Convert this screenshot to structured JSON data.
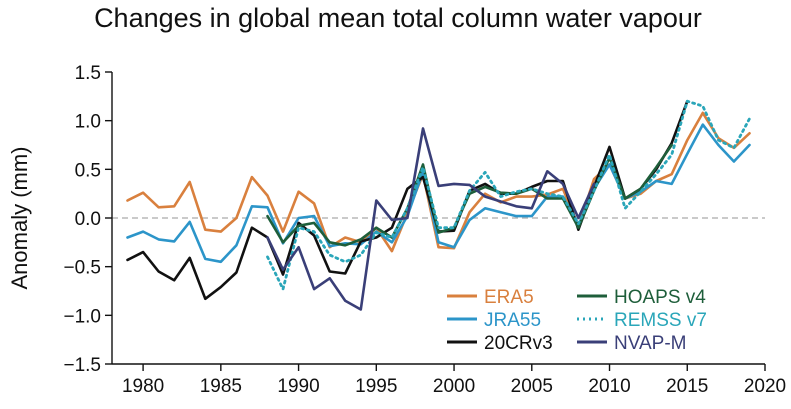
{
  "chart_data": {
    "type": "line",
    "title": "Changes in global mean total column water vapour",
    "xlabel": "",
    "ylabel": "Anomaly (mm)",
    "xlim": [
      1978,
      2020
    ],
    "ylim": [
      -1.5,
      1.5
    ],
    "xticks": [
      1980,
      1985,
      1990,
      1995,
      2000,
      2005,
      2010,
      2015,
      2020
    ],
    "yticks": [
      {
        "value": -1.5,
        "label": "−1.5"
      },
      {
        "value": -1.0,
        "label": "−1.0"
      },
      {
        "value": -0.5,
        "label": "−0.5"
      },
      {
        "value": 0.0,
        "label": "0.0"
      },
      {
        "value": 0.5,
        "label": "0.5"
      },
      {
        "value": 1.0,
        "label": "1.0"
      },
      {
        "value": 1.5,
        "label": "1.5"
      }
    ],
    "zero_line": "dashed",
    "legend_placement": "bottom-right",
    "series": [
      {
        "name": "ERA5",
        "color": "#d9803e",
        "dash": "solid",
        "x": [
          1979,
          1980,
          1981,
          1982,
          1983,
          1984,
          1985,
          1986,
          1987,
          1988,
          1989,
          1990,
          1991,
          1992,
          1993,
          1994,
          1995,
          1996,
          1997,
          1998,
          1999,
          2000,
          2001,
          2002,
          2003,
          2004,
          2005,
          2006,
          2007,
          2008,
          2009,
          2010,
          2011,
          2012,
          2013,
          2014,
          2015,
          2016,
          2017,
          2018,
          2019
        ],
        "y": [
          0.18,
          0.26,
          0.11,
          0.12,
          0.37,
          -0.12,
          -0.14,
          0.0,
          0.42,
          0.23,
          -0.14,
          0.27,
          0.15,
          -0.3,
          -0.2,
          -0.25,
          -0.1,
          -0.34,
          0.05,
          0.45,
          -0.3,
          -0.31,
          0.06,
          0.25,
          0.16,
          0.22,
          0.22,
          0.24,
          0.3,
          -0.09,
          0.4,
          0.55,
          0.2,
          0.25,
          0.38,
          0.45,
          0.8,
          1.08,
          0.82,
          0.72,
          0.87
        ]
      },
      {
        "name": "JRA55",
        "color": "#2c95c9",
        "dash": "solid",
        "x": [
          1979,
          1980,
          1981,
          1982,
          1983,
          1984,
          1985,
          1986,
          1987,
          1988,
          1989,
          1990,
          1991,
          1992,
          1993,
          1994,
          1995,
          1996,
          1997,
          1998,
          1999,
          2000,
          2001,
          2002,
          2003,
          2004,
          2005,
          2006,
          2007,
          2008,
          2009,
          2010,
          2011,
          2012,
          2013,
          2014,
          2015,
          2016,
          2017,
          2018,
          2019
        ],
        "y": [
          -0.2,
          -0.14,
          -0.22,
          -0.24,
          -0.04,
          -0.42,
          -0.45,
          -0.28,
          0.12,
          0.11,
          -0.26,
          0.0,
          0.02,
          -0.29,
          -0.26,
          -0.27,
          -0.14,
          -0.25,
          0.02,
          0.48,
          -0.25,
          -0.3,
          -0.02,
          0.1,
          0.06,
          0.02,
          0.02,
          0.22,
          0.22,
          -0.08,
          0.3,
          0.55,
          0.2,
          0.27,
          0.38,
          0.35,
          0.66,
          0.96,
          0.75,
          0.58,
          0.75
        ]
      },
      {
        "name": "20CRv3",
        "color": "#111111",
        "dash": "solid",
        "x": [
          1979,
          1980,
          1981,
          1982,
          1983,
          1984,
          1985,
          1986,
          1987,
          1988,
          1989,
          1990,
          1991,
          1992,
          1993,
          1994,
          1995,
          1996,
          1997,
          1998,
          1999,
          2000,
          2001,
          2002,
          2003,
          2004,
          2005,
          2006,
          2007,
          2008,
          2009,
          2010,
          2011,
          2012,
          2013,
          2014,
          2015
        ],
        "y": [
          -0.43,
          -0.35,
          -0.55,
          -0.64,
          -0.41,
          -0.83,
          -0.71,
          -0.56,
          -0.1,
          -0.2,
          -0.58,
          -0.05,
          -0.18,
          -0.55,
          -0.57,
          -0.24,
          -0.2,
          -0.1,
          0.3,
          0.42,
          -0.14,
          -0.13,
          0.28,
          0.35,
          0.25,
          0.25,
          0.32,
          0.38,
          0.38,
          -0.12,
          0.32,
          0.73,
          0.2,
          0.3,
          0.5,
          0.77,
          1.2
        ]
      },
      {
        "name": "HOAPS v4",
        "color": "#1e5e3a",
        "dash": "solid",
        "x": [
          1988,
          1989,
          1990,
          1991,
          1992,
          1993,
          1994,
          1995,
          1996,
          1997,
          1998,
          1999,
          2000,
          2001,
          2002,
          2003,
          2004,
          2005,
          2006,
          2007,
          2008,
          2009,
          2010,
          2011,
          2012,
          2013,
          2014
        ],
        "y": [
          0.02,
          -0.25,
          -0.08,
          -0.05,
          -0.25,
          -0.28,
          -0.22,
          -0.1,
          -0.2,
          0.1,
          0.55,
          -0.15,
          -0.1,
          0.25,
          0.32,
          0.26,
          0.25,
          0.3,
          0.2,
          0.2,
          -0.1,
          0.28,
          0.62,
          0.2,
          0.3,
          0.52,
          0.75
        ]
      },
      {
        "name": "REMSS v7",
        "color": "#2aa6b9",
        "dash": "dotted",
        "x": [
          1988,
          1989,
          1990,
          1991,
          1992,
          1993,
          1994,
          1995,
          1996,
          1997,
          1998,
          1999,
          2000,
          2001,
          2002,
          2003,
          2004,
          2005,
          2006,
          2007,
          2008,
          2009,
          2010,
          2011,
          2012,
          2013,
          2014,
          2015,
          2016,
          2017,
          2018,
          2019
        ],
        "y": [
          -0.4,
          -0.73,
          -0.1,
          -0.14,
          -0.38,
          -0.45,
          -0.38,
          -0.15,
          -0.2,
          0.1,
          0.52,
          -0.1,
          -0.1,
          0.28,
          0.47,
          0.22,
          0.27,
          0.3,
          0.25,
          0.22,
          -0.06,
          0.28,
          0.65,
          0.1,
          0.27,
          0.45,
          0.65,
          1.2,
          1.15,
          0.8,
          0.72,
          1.02
        ]
      },
      {
        "name": "NVAP-M",
        "color": "#3a3f78",
        "dash": "solid",
        "x": [
          1988,
          1989,
          1990,
          1991,
          1992,
          1993,
          1994,
          1995,
          1996,
          1997,
          1998,
          1999,
          2000,
          2001,
          2002,
          2003,
          2004,
          2005,
          2006,
          2007,
          2008,
          2009
        ],
        "y": [
          -0.2,
          -0.53,
          -0.3,
          -0.73,
          -0.62,
          -0.85,
          -0.94,
          0.18,
          -0.02,
          0.0,
          0.92,
          0.33,
          0.35,
          0.34,
          0.22,
          0.17,
          0.12,
          0.1,
          0.48,
          0.35,
          0.0,
          0.35
        ]
      }
    ]
  }
}
